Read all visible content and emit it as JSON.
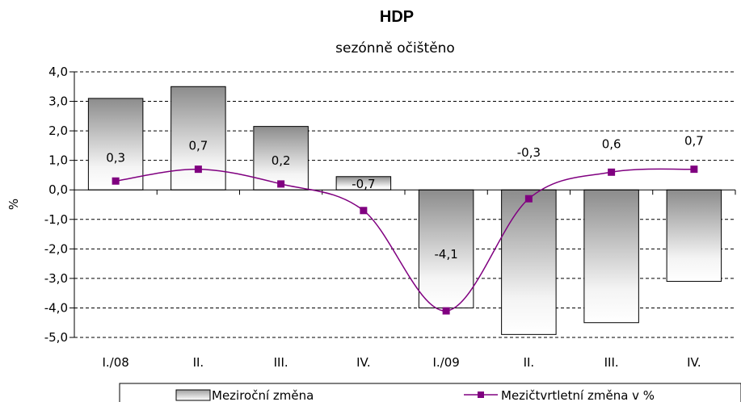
{
  "chart_data": {
    "type": "bar",
    "title": "HDP",
    "subtitle": "sezónně očištěno",
    "ylabel": "%",
    "ylim": [
      -5,
      4
    ],
    "yticks": [
      "4,0",
      "3,0",
      "2,0",
      "1,0",
      "0,0",
      "-1,0",
      "-2,0",
      "-3,0",
      "-4,0",
      "-5,0"
    ],
    "categories": [
      "I./08",
      "II.",
      "III.",
      "IV.",
      "I./09",
      "II.",
      "III.",
      "IV."
    ],
    "series": [
      {
        "name": "Meziroční změna",
        "type": "bar",
        "values": [
          3.1,
          3.5,
          2.15,
          0.45,
          -4.0,
          -4.9,
          -4.5,
          -3.1
        ]
      },
      {
        "name": "Mezičtvrtletní změna v %",
        "type": "line",
        "color": "#800080",
        "values": [
          0.3,
          0.7,
          0.2,
          -0.7,
          -4.1,
          -0.3,
          0.6,
          0.7
        ],
        "labels": [
          "0,3",
          "0,7",
          "0,2",
          "-0,7",
          "-4,1",
          "-0,3",
          "0,6",
          "0,7"
        ]
      }
    ],
    "grid": "dashed horizontal",
    "legend": "bottom"
  }
}
